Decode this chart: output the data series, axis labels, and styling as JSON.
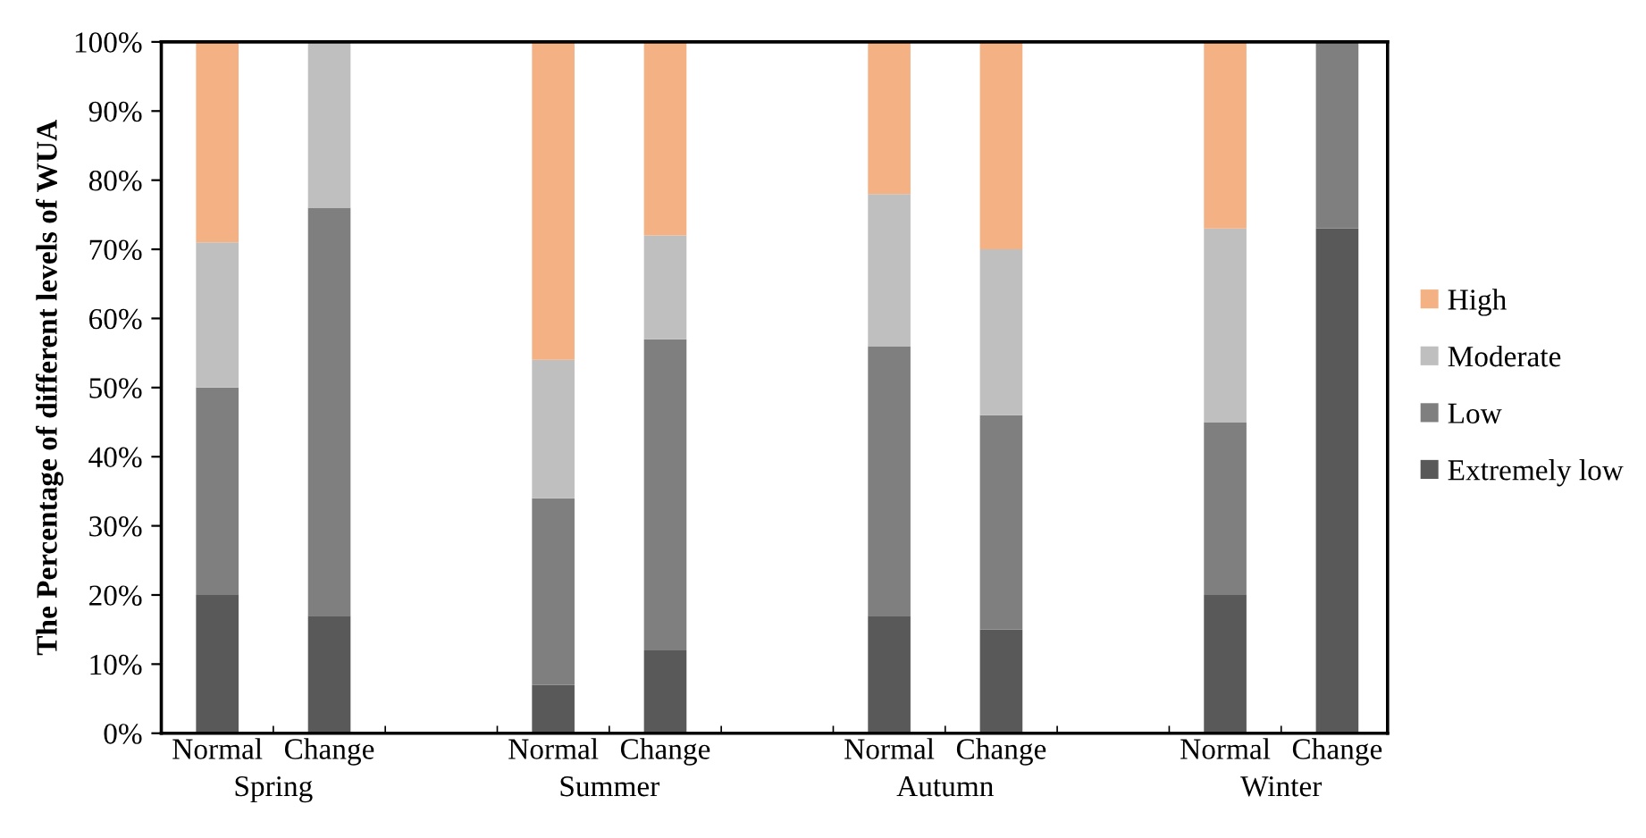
{
  "chart_data": {
    "type": "bar",
    "stacked": true,
    "ylabel": "The Percentage of different levels of WUA",
    "categories": [
      "Normal",
      "Change",
      null,
      "Normal",
      "Change",
      null,
      "Normal",
      "Change",
      null,
      "Normal",
      "Change"
    ],
    "series": [
      {
        "name": "Extremely low",
        "color": "#595959",
        "values": [
          20,
          17,
          null,
          7,
          12,
          null,
          17,
          15,
          null,
          20,
          73
        ]
      },
      {
        "name": "Low",
        "color": "#7f7f7f",
        "values": [
          30,
          59,
          null,
          27,
          45,
          null,
          39,
          31,
          null,
          25,
          27
        ]
      },
      {
        "name": "Moderate",
        "color": "#bfbfbf",
        "values": [
          21,
          24,
          null,
          20,
          15,
          null,
          22,
          24,
          null,
          28,
          0
        ]
      },
      {
        "name": "High",
        "color": "#f4b183",
        "values": [
          29,
          0,
          null,
          46,
          28,
          null,
          22,
          30,
          null,
          27,
          0
        ]
      }
    ],
    "ylim": [
      0,
      100
    ],
    "yticks": [
      {
        "value": 0,
        "label": "0%"
      },
      {
        "value": 10,
        "label": "10%"
      },
      {
        "value": 20,
        "label": "20%"
      },
      {
        "value": 30,
        "label": "30%"
      },
      {
        "value": 40,
        "label": "40%"
      },
      {
        "value": 50,
        "label": "50%"
      },
      {
        "value": 60,
        "label": "60%"
      },
      {
        "value": 70,
        "label": "70%"
      },
      {
        "value": 80,
        "label": "80%"
      },
      {
        "value": 90,
        "label": "90%"
      },
      {
        "value": 100,
        "label": "100%"
      }
    ],
    "annotations": [
      "Spring",
      "Summer",
      "Autumn",
      "Winter"
    ],
    "legend": "right",
    "grid": false
  }
}
